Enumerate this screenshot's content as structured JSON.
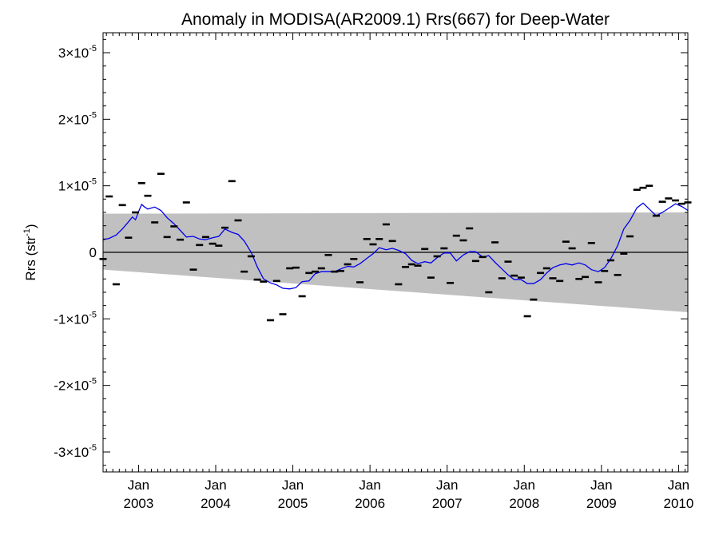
{
  "chart_data": {
    "type": "line",
    "title": "Anomaly in MODISA(AR2009.1) Rrs(667) for Deep-Water",
    "ylabel": "Rrs (str",
    "ylabel_sup": "-1",
    "ylabel_close": ")",
    "ylim": [
      -3.3e-05,
      3.3e-05
    ],
    "xlim": [
      2002.54,
      2010.12
    ],
    "y_ticks": [
      {
        "value": 3e-05,
        "mant": "3×10",
        "exp": "-5"
      },
      {
        "value": 2e-05,
        "mant": "2×10",
        "exp": "-5"
      },
      {
        "value": 1e-05,
        "mant": "1×10",
        "exp": "-5"
      },
      {
        "value": 0,
        "mant": "0",
        "exp": ""
      },
      {
        "value": -1e-05,
        "mant": "-1×10",
        "exp": "-5"
      },
      {
        "value": -2e-05,
        "mant": "-2×10",
        "exp": "-5"
      },
      {
        "value": -3e-05,
        "mant": "-3×10",
        "exp": "-5"
      }
    ],
    "x_ticks": [
      {
        "value": 2003.0,
        "month": "Jan",
        "year": "2003"
      },
      {
        "value": 2004.0,
        "month": "Jan",
        "year": "2004"
      },
      {
        "value": 2005.0,
        "month": "Jan",
        "year": "2005"
      },
      {
        "value": 2006.0,
        "month": "Jan",
        "year": "2006"
      },
      {
        "value": 2007.0,
        "month": "Jan",
        "year": "2007"
      },
      {
        "value": 2008.0,
        "month": "Jan",
        "year": "2008"
      },
      {
        "value": 2009.0,
        "month": "Jan",
        "year": "2009"
      },
      {
        "value": 2010.0,
        "month": "Jan",
        "year": "2010"
      }
    ],
    "grey_band": {
      "x": [
        2002.54,
        2010.12
      ],
      "upper": [
        5.8e-06,
        6e-06
      ],
      "lower": [
        -2.6e-06,
        -9e-06
      ],
      "color": "#c0c0c0"
    },
    "series": [
      {
        "type": "scatter",
        "marker": "dash",
        "color": "#000000",
        "x": [
          2002.54,
          2002.62,
          2002.71,
          2002.79,
          2002.87,
          2002.96,
          2003.04,
          2003.12,
          2003.21,
          2003.29,
          2003.37,
          2003.46,
          2003.54,
          2003.62,
          2003.71,
          2003.79,
          2003.87,
          2003.96,
          2004.04,
          2004.12,
          2004.21,
          2004.29,
          2004.37,
          2004.46,
          2004.54,
          2004.62,
          2004.71,
          2004.79,
          2004.87,
          2004.96,
          2005.04,
          2005.12,
          2005.21,
          2005.29,
          2005.37,
          2005.46,
          2005.54,
          2005.62,
          2005.71,
          2005.79,
          2005.87,
          2005.96,
          2006.04,
          2006.12,
          2006.21,
          2006.29,
          2006.37,
          2006.46,
          2006.54,
          2006.62,
          2006.71,
          2006.79,
          2006.87,
          2006.96,
          2007.04,
          2007.12,
          2007.21,
          2007.29,
          2007.37,
          2007.46,
          2007.54,
          2007.62,
          2007.71,
          2007.79,
          2007.87,
          2007.96,
          2008.04,
          2008.12,
          2008.21,
          2008.29,
          2008.37,
          2008.46,
          2008.54,
          2008.62,
          2008.71,
          2008.79,
          2008.87,
          2008.96,
          2009.04,
          2009.12,
          2009.21,
          2009.29,
          2009.37,
          2009.46,
          2009.54,
          2009.62,
          2009.71,
          2009.79,
          2009.87,
          2009.96,
          2010.04,
          2010.12
        ],
        "y": [
          -1e-06,
          8.4e-06,
          -4.8e-06,
          7.1e-06,
          2.2e-06,
          6e-06,
          1.04e-05,
          8.5e-06,
          4.5e-06,
          1.18e-05,
          2.3e-06,
          3.9e-06,
          1.9e-06,
          7.5e-06,
          -2.6e-06,
          1.1e-06,
          2.3e-06,
          1.3e-06,
          1e-06,
          3.7e-06,
          1.07e-05,
          4.8e-06,
          -2.9e-06,
          -6e-07,
          -4.1e-06,
          -4.4e-06,
          -1.02e-05,
          -4.3e-06,
          -9.3e-06,
          -2.4e-06,
          -2.3e-06,
          -6.6e-06,
          -3.1e-06,
          -2.9e-06,
          -2.4e-06,
          -4e-07,
          -2.9e-06,
          -2.8e-06,
          -1.8e-06,
          -1e-06,
          -4.5e-06,
          2e-06,
          1.2e-06,
          2e-06,
          4.2e-06,
          1.7e-06,
          -4.8e-06,
          -2.2e-06,
          -1.8e-06,
          -2e-06,
          5e-07,
          -3.8e-06,
          -6e-07,
          6e-07,
          -4.6e-06,
          2.5e-06,
          1.8e-06,
          3.6e-06,
          -1.3e-06,
          -7e-07,
          -6e-06,
          1.5e-06,
          -3.9e-06,
          -1.4e-06,
          -3.5e-06,
          -3.8e-06,
          -9.6e-06,
          -7.1e-06,
          -3.1e-06,
          -2.4e-06,
          -3.9e-06,
          -4.3e-06,
          1.6e-06,
          6e-07,
          -4e-06,
          -3.7e-06,
          1.4e-06,
          -4.5e-06,
          -2.8e-06,
          -1.2e-06,
          -3.4e-06,
          -2e-07,
          2.4e-06,
          9.4e-06,
          9.7e-06,
          1e-05,
          5.5e-06,
          7.6e-06,
          8.1e-06,
          7.8e-06,
          7.3e-06,
          7.5e-06
        ]
      },
      {
        "type": "line",
        "color": "#0000ee",
        "x": [
          2002.54,
          2002.62,
          2002.71,
          2002.79,
          2002.87,
          2002.92,
          2002.96,
          2003.0,
          2003.04,
          2003.08,
          2003.12,
          2003.21,
          2003.29,
          2003.37,
          2003.46,
          2003.54,
          2003.62,
          2003.71,
          2003.79,
          2003.87,
          2003.96,
          2004.04,
          2004.12,
          2004.21,
          2004.29,
          2004.37,
          2004.46,
          2004.54,
          2004.62,
          2004.71,
          2004.79,
          2004.87,
          2004.96,
          2005.04,
          2005.12,
          2005.21,
          2005.29,
          2005.37,
          2005.46,
          2005.54,
          2005.62,
          2005.71,
          2005.79,
          2005.87,
          2005.96,
          2006.04,
          2006.12,
          2006.21,
          2006.29,
          2006.37,
          2006.46,
          2006.54,
          2006.62,
          2006.71,
          2006.79,
          2006.87,
          2006.96,
          2007.04,
          2007.12,
          2007.21,
          2007.29,
          2007.37,
          2007.46,
          2007.54,
          2007.62,
          2007.71,
          2007.79,
          2007.87,
          2007.96,
          2008.04,
          2008.12,
          2008.21,
          2008.29,
          2008.37,
          2008.46,
          2008.54,
          2008.62,
          2008.71,
          2008.79,
          2008.87,
          2008.96,
          2009.04,
          2009.12,
          2009.21,
          2009.29,
          2009.37,
          2009.46,
          2009.54,
          2009.62,
          2009.71,
          2009.79,
          2009.87,
          2009.96,
          2010.04,
          2010.12
        ],
        "y": [
          1.9e-06,
          2.1e-06,
          2.6e-06,
          3.5e-06,
          4.6e-06,
          5.3e-06,
          4.9e-06,
          6.1e-06,
          7.2e-06,
          6.8e-06,
          6.5e-06,
          6.8e-06,
          6.3e-06,
          5.2e-06,
          4.3e-06,
          3.3e-06,
          2.3e-06,
          2.4e-06,
          2e-06,
          1.9e-06,
          2.2e-06,
          2.4e-06,
          3.5e-06,
          3e-06,
          2.7e-06,
          1.7e-06,
          0.0,
          -2.2e-06,
          -4e-06,
          -4.6e-06,
          -4.9e-06,
          -5.4e-06,
          -5.5e-06,
          -5.3e-06,
          -4.4e-06,
          -4.3e-06,
          -3.2e-06,
          -2.9e-06,
          -2.9e-06,
          -2.9e-06,
          -2.5e-06,
          -2.1e-06,
          -2.2e-06,
          -1.7e-06,
          -9e-07,
          -2e-07,
          7e-07,
          4e-07,
          6e-07,
          3e-07,
          -2e-07,
          -1.2e-06,
          -1.7e-06,
          -1.4e-06,
          -1.6e-06,
          -8e-07,
          -1e-07,
          -1e-07,
          -1.3e-06,
          -4e-07,
          1e-07,
          1e-07,
          -7e-07,
          -5e-07,
          -1.5e-06,
          -2.5e-06,
          -3.4e-06,
          -4.1e-06,
          -4.1e-06,
          -4.7e-06,
          -4.7e-06,
          -4.1e-06,
          -3.1e-06,
          -2.3e-06,
          -1.9e-06,
          -1.7e-06,
          -1.9e-06,
          -1.6e-06,
          -1.9e-06,
          -2.6e-06,
          -2.9e-06,
          -2.3e-06,
          -1e-06,
          1e-06,
          3.5e-06,
          4.8e-06,
          6.7e-06,
          7.4e-06,
          6.5e-06,
          5.5e-06,
          6e-06,
          6.6e-06,
          7.3e-06,
          6.9e-06,
          6.3e-06
        ]
      }
    ],
    "zero_line": true,
    "grid": false,
    "legend": "none"
  }
}
